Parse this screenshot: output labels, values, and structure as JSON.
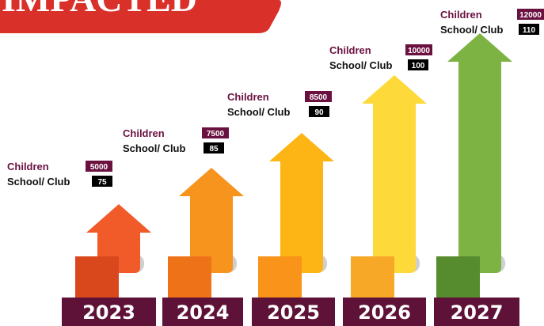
{
  "title": "IMPACTED",
  "items": [
    {
      "year": "2023",
      "children_label": "Children",
      "children": 5000,
      "school_label": "School/ Club",
      "schools": 75
    },
    {
      "year": "2024",
      "children_label": "Children",
      "children": 7500,
      "school_label": "School/ Club",
      "schools": 85
    },
    {
      "year": "2025",
      "children_label": "Children",
      "children": 8500,
      "school_label": "School/ Club",
      "schools": 90
    },
    {
      "year": "2026",
      "children_label": "Children",
      "children": 10000,
      "school_label": "School/ Club",
      "schools": 100
    },
    {
      "year": "2027",
      "children_label": "Children",
      "children": 12000,
      "school_label": "School/ Club",
      "schools": 110
    }
  ]
}
